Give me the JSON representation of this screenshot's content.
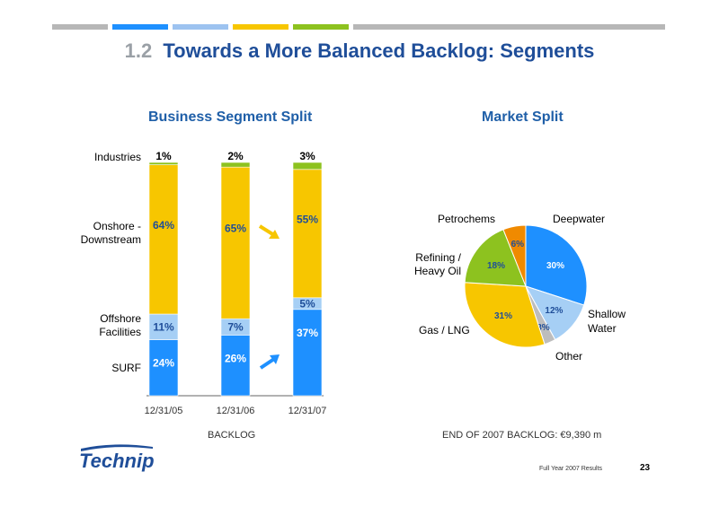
{
  "slide": {
    "section_number": "1.2",
    "title": "Towards a More Balanced Backlog: Segments",
    "top_bar_colors": [
      "#b7b7b7",
      "#1e90ff",
      "#9dc3f0",
      "#f7c600",
      "#8dc21f",
      "#b7b7b7"
    ],
    "footer_text": "Full Year 2007 Results",
    "page_number": "23",
    "logo_text": "Technip",
    "logo_color": "#1f4e99"
  },
  "chart_data": [
    {
      "type": "bar",
      "stacked": true,
      "title": "Business Segment Split",
      "xlabel": "BACKLOG",
      "categories": [
        "12/31/05",
        "12/31/06",
        "12/31/07"
      ],
      "series": [
        {
          "name": "SURF",
          "color": "#1e90ff",
          "values": [
            24,
            26,
            37
          ],
          "labels": [
            "24%",
            "26%",
            "37%"
          ]
        },
        {
          "name": "Offshore Facilities",
          "color": "#a6cff5",
          "values": [
            11,
            7,
            5
          ],
          "labels": [
            "11%",
            "7%",
            "5%"
          ]
        },
        {
          "name": "Onshore - Downstream",
          "color": "#f7c600",
          "values": [
            64,
            65,
            55
          ],
          "labels": [
            "64%",
            "65%",
            "55%"
          ]
        },
        {
          "name": "Industries",
          "color": "#8dc21f",
          "values": [
            1,
            2,
            3
          ],
          "labels": [
            "1%",
            "2%",
            "3%"
          ]
        }
      ],
      "row_labels": {
        "surf": "SURF",
        "offshore": [
          "Offshore",
          "Facilities"
        ],
        "onshore": [
          "Onshore -",
          "Downstream"
        ],
        "industries": "Industries"
      },
      "ylim": [
        0,
        100
      ],
      "arrow_color_onshore": "#f7c600",
      "arrow_color_surf": "#1e90ff"
    },
    {
      "type": "pie",
      "title": "Market Split",
      "caption": "END OF 2007 BACKLOG: €9,390 m",
      "slices": [
        {
          "name": "Deepwater",
          "value": 30,
          "label": "30%",
          "color": "#1e90ff",
          "label_color": "#ffffff"
        },
        {
          "name": "Shallow Water",
          "value": 12,
          "label": "12%",
          "color": "#a6cff5",
          "label_color": "#1f4e99"
        },
        {
          "name": "Other",
          "value": 3,
          "label": "3%",
          "color": "#bdbdbd",
          "label_color": "#1f4e99"
        },
        {
          "name": "Gas / LNG",
          "value": 31,
          "label": "31%",
          "color": "#f7c600",
          "label_color": "#1f4e99"
        },
        {
          "name": "Refining / Heavy Oil",
          "value": 18,
          "label": "18%",
          "color": "#8dc21f",
          "label_color": "#1f4e99"
        },
        {
          "name": "Petrochems",
          "value": 6,
          "label": "6%",
          "color": "#f08a00",
          "label_color": "#1f4e99"
        }
      ],
      "legend_names": {
        "deepwater": "Deepwater",
        "shallow": [
          "Shallow",
          "Water"
        ],
        "other": "Other",
        "gas": "Gas / LNG",
        "refining": [
          "Refining /",
          "Heavy Oil"
        ],
        "petrochems": "Petrochems"
      }
    }
  ]
}
